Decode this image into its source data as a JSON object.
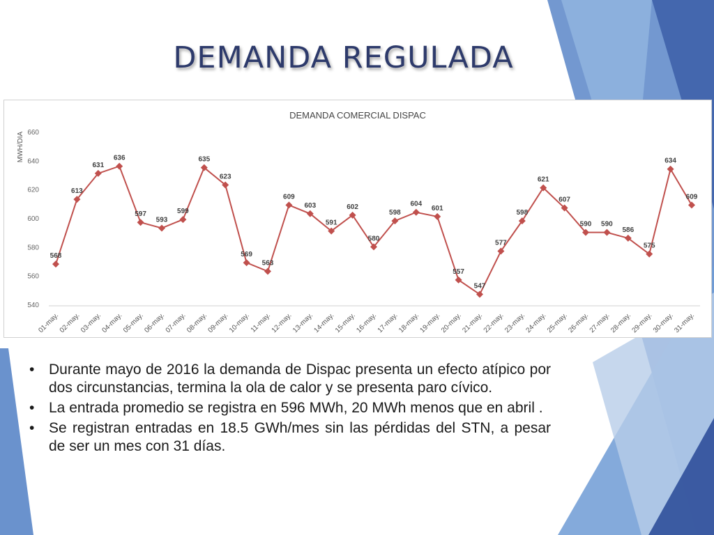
{
  "slide": {
    "title": "DEMANDA REGULADA",
    "accent_colors": [
      "#4a6fb5",
      "#6a9ad2",
      "#9cbfe3",
      "#2f4f9a"
    ]
  },
  "chart_data": {
    "type": "line",
    "title": "DEMANDA COMERCIAL DISPAC",
    "ylabel": "MWH/DIA",
    "xlabel": "",
    "ylim": [
      540,
      660
    ],
    "yticks": [
      540,
      560,
      580,
      600,
      620,
      640,
      660
    ],
    "grid": false,
    "legend": "none",
    "categories": [
      "01-may.",
      "02-may.",
      "03-may.",
      "04-may.",
      "05-may.",
      "06-may.",
      "07-may.",
      "08-may.",
      "09-may.",
      "10-may.",
      "11-may.",
      "12-may.",
      "13-may.",
      "14-may.",
      "15-may.",
      "16-may.",
      "17-may.",
      "18-may.",
      "19-may.",
      "20-may.",
      "21-may.",
      "22-may.",
      "23-may.",
      "24-may.",
      "25-may.",
      "26-may.",
      "27-may.",
      "28-may.",
      "29-may.",
      "30-may.",
      "31-may."
    ],
    "series": [
      {
        "color": "#c0504d",
        "values": [
          568,
          613,
          631,
          636,
          597,
          593,
          599,
          635,
          623,
          569,
          563,
          609,
          603,
          591,
          602,
          580,
          598,
          604,
          601,
          557,
          547,
          577,
          598,
          621,
          607,
          590,
          590,
          586,
          575,
          634,
          609
        ]
      }
    ]
  },
  "bullets": [
    "Durante mayo de 2016 la demanda de Dispac presenta un efecto atípico por dos circunstancias, termina la ola de calor y se presenta paro cívico.",
    "La entrada promedio se registra en 596 MWh, 20 MWh menos que en abril .",
    "Se registran entradas en 18.5 GWh/mes sin las pérdidas del STN, a pesar de ser un mes con 31 días."
  ],
  "bullet_symbol": "•"
}
